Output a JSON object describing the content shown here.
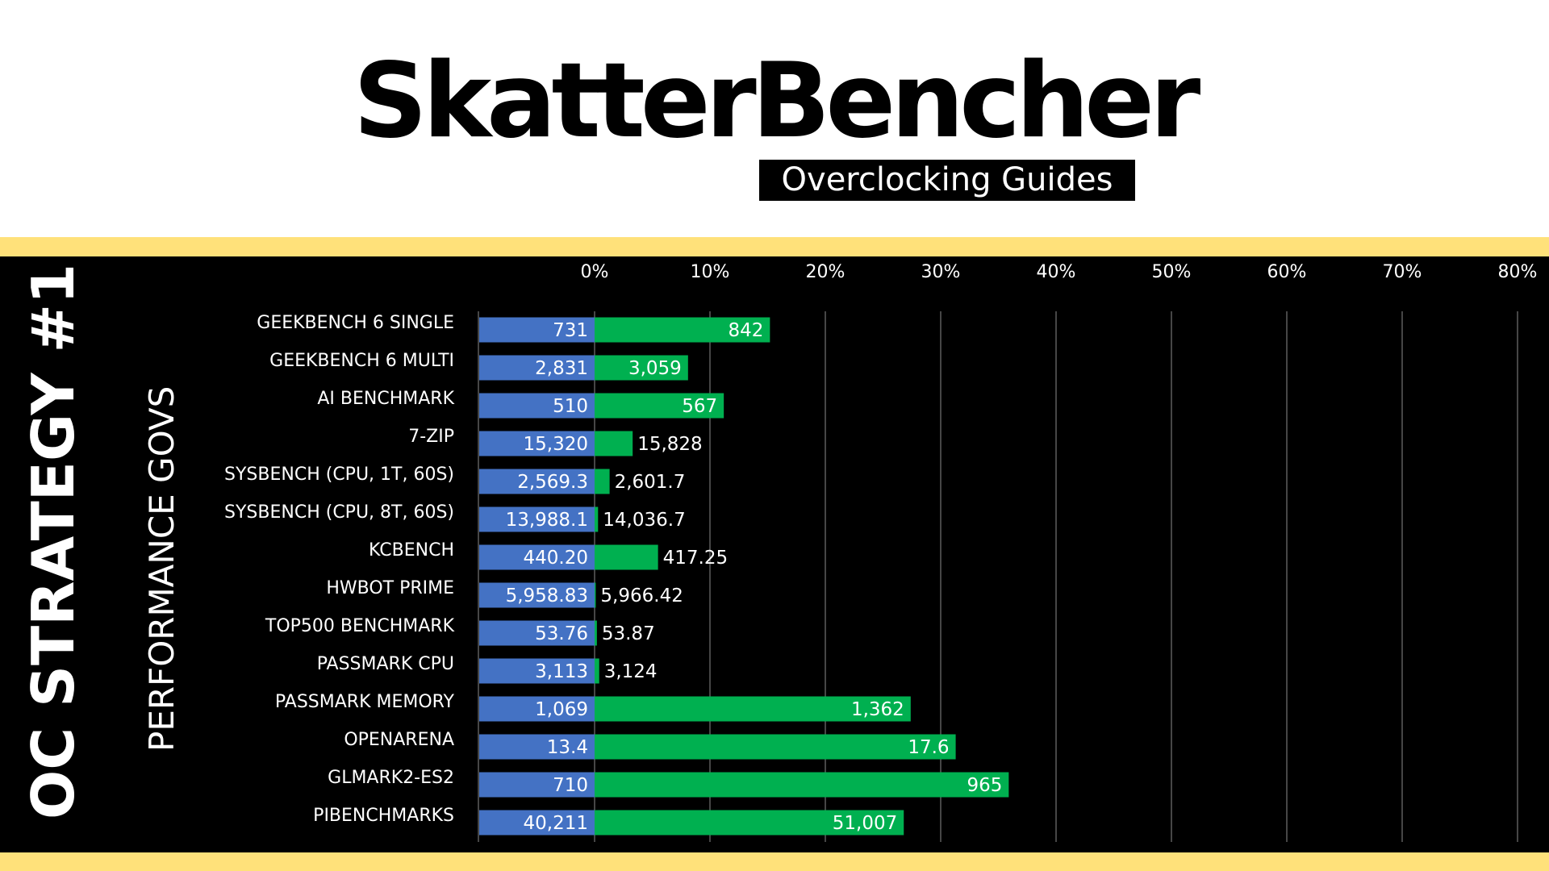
{
  "brand": {
    "title": "SkatterBencher",
    "subtitle": "Overclocking Guides"
  },
  "side": {
    "title": "OC STRATEGY #1",
    "subtitle": "PERFORMANCE GOVS"
  },
  "colors": {
    "background": "#000000",
    "band": "#ffe17a",
    "baseline_bar": "#4472c4",
    "oc_bar": "#00b050",
    "grid": "#8c8c8c",
    "text": "#ffffff"
  },
  "chart_data": {
    "type": "bar",
    "orientation": "horizontal",
    "x_ticks": [
      "0%",
      "10%",
      "20%",
      "30%",
      "40%",
      "50%",
      "60%",
      "70%",
      "80%"
    ],
    "xlim": [
      -10,
      80
    ],
    "grid": true,
    "categories": [
      "GEEKBENCH 6 SINGLE",
      "GEEKBENCH 6 MULTI",
      "AI BENCHMARK",
      "7-ZIP",
      "SYSBENCH (CPU, 1T, 60S)",
      "SYSBENCH (CPU, 8T, 60S)",
      "KCBENCH",
      "HWBOT PRIME",
      "TOP500 BENCHMARK",
      "PASSMARK CPU",
      "PASSMARK MEMORY",
      "OPENARENA",
      "GLMARK2-ES2",
      "PIBENCHMARKS"
    ],
    "series": [
      {
        "values": [
          0,
          0,
          0,
          0,
          0,
          0,
          0,
          0,
          0,
          0,
          0,
          0,
          0,
          0
        ],
        "labels": [
          "731",
          "2,831",
          "510",
          "15,320",
          "2,569.3",
          "13,988.1",
          "440.20",
          "5,958.83",
          "53.76",
          "3,113",
          "1,069",
          "13.4",
          "710",
          "40,211"
        ]
      },
      {
        "values": [
          15.2,
          8.1,
          11.2,
          3.3,
          1.3,
          0.3,
          5.5,
          0.1,
          0.2,
          0.4,
          27.4,
          31.3,
          35.9,
          26.8
        ],
        "labels": [
          "842",
          "3,059",
          "567",
          "15,828",
          "2,601.7",
          "14,036.7",
          "417.25",
          "5,966.42",
          "53.87",
          "3,124",
          "1,362",
          "17.6",
          "965",
          "51,007"
        ]
      }
    ]
  }
}
